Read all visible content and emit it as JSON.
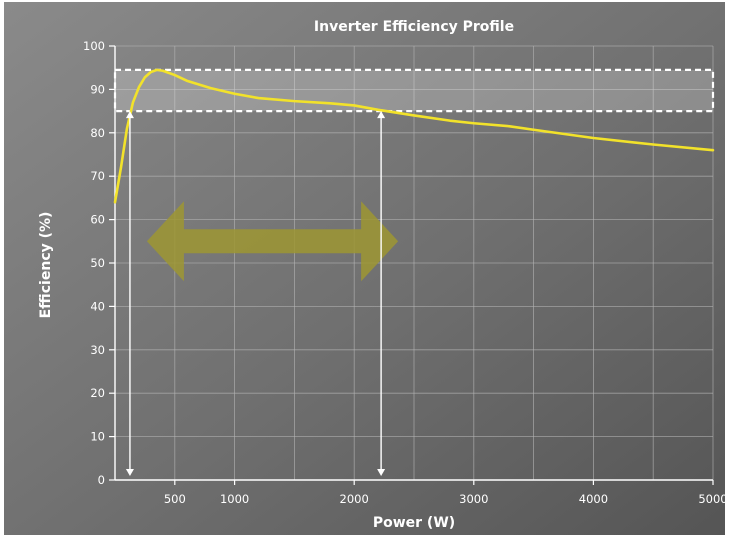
{
  "chart_data": {
    "type": "line",
    "title": "Inverter Efficiency Profile",
    "xlabel": "Power (W)",
    "ylabel": "Efficiency (%)",
    "xlim": [
      0,
      5000
    ],
    "ylim": [
      0,
      100
    ],
    "x_ticks": [
      500,
      1000,
      2000,
      3000,
      4000,
      5000
    ],
    "y_ticks": [
      0,
      10,
      20,
      30,
      40,
      50,
      60,
      70,
      80,
      90,
      100
    ],
    "grid": true,
    "series": [
      {
        "color": "#f2e22a",
        "x": [
          0,
          50,
          100,
          150,
          200,
          250,
          300,
          350,
          400,
          500,
          600,
          800,
          1000,
          1200,
          1500,
          1800,
          2000,
          2200,
          2500,
          2800,
          3000,
          3300,
          3500,
          4000,
          4500,
          5000
        ],
        "y": [
          64,
          72,
          81,
          87,
          90.5,
          92.8,
          94,
          94.5,
          94.3,
          93.3,
          92,
          90.3,
          89,
          88,
          87.3,
          86.8,
          86.3,
          85.3,
          84,
          82.8,
          82.2,
          81.5,
          80.7,
          78.8,
          77.3,
          76
        ]
      }
    ],
    "highlight_band": {
      "y_range": [
        85,
        94.5
      ],
      "color": "#ffffff"
    },
    "range_markers": [
      {
        "x": 125,
        "y_top": 85
      },
      {
        "x": 2225,
        "y_top": 85
      }
    ],
    "double_arrow": {
      "x_range": [
        200,
        2200
      ],
      "y_center": 55,
      "color": "#9e9633"
    }
  }
}
